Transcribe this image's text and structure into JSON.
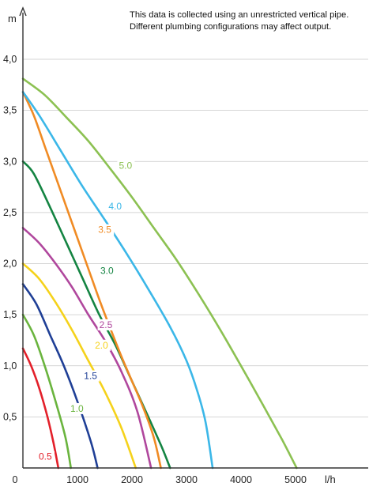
{
  "note": {
    "line1": "This data is collected using an unrestricted vertical pipe.",
    "line2": "Different plumbing configurations may affect output."
  },
  "chart_data": {
    "type": "line",
    "xlabel": "l/h",
    "ylabel": "m",
    "xlim": [
      0,
      5300
    ],
    "ylim": [
      0,
      4.2
    ],
    "x_ticks": [
      {
        "value": 0,
        "label": "0"
      },
      {
        "value": 1000,
        "label": "1000"
      },
      {
        "value": 2000,
        "label": "2000"
      },
      {
        "value": 3000,
        "label": "3000"
      },
      {
        "value": 4000,
        "label": "4000"
      },
      {
        "value": 5000,
        "label": "5000"
      }
    ],
    "y_ticks": [
      {
        "value": 0.5,
        "label": "0,5"
      },
      {
        "value": 1.0,
        "label": "1,0"
      },
      {
        "value": 1.5,
        "label": "1,5"
      },
      {
        "value": 2.0,
        "label": "2,0"
      },
      {
        "value": 2.5,
        "label": "2,5"
      },
      {
        "value": 3.0,
        "label": "3,0"
      },
      {
        "value": 3.5,
        "label": "3,5"
      },
      {
        "value": 4.0,
        "label": "4,0"
      }
    ],
    "grid": "horizontal",
    "series": [
      {
        "name": "0.5",
        "color": "#e3202a",
        "label_at": [
          290,
          0.08
        ],
        "points": [
          [
            0,
            1.17
          ],
          [
            150,
            1.0
          ],
          [
            300,
            0.78
          ],
          [
            450,
            0.5
          ],
          [
            560,
            0.25
          ],
          [
            650,
            0.0
          ]
        ]
      },
      {
        "name": "1.0",
        "color": "#6ab43e",
        "label_at": [
          870,
          0.55
        ],
        "points": [
          [
            0,
            1.5
          ],
          [
            200,
            1.3
          ],
          [
            400,
            1.0
          ],
          [
            600,
            0.65
          ],
          [
            780,
            0.3
          ],
          [
            880,
            0.0
          ]
        ]
      },
      {
        "name": "1.5",
        "color": "#1f3f96",
        "label_at": [
          1120,
          0.87
        ],
        "points": [
          [
            0,
            1.8
          ],
          [
            250,
            1.6
          ],
          [
            500,
            1.3
          ],
          [
            750,
            1.0
          ],
          [
            1000,
            0.65
          ],
          [
            1250,
            0.25
          ],
          [
            1370,
            0.0
          ]
        ]
      },
      {
        "name": "2.0",
        "color": "#f5d21b",
        "label_at": [
          1320,
          1.17
        ],
        "points": [
          [
            0,
            2.0
          ],
          [
            300,
            1.85
          ],
          [
            600,
            1.62
          ],
          [
            900,
            1.35
          ],
          [
            1200,
            1.05
          ],
          [
            1500,
            0.75
          ],
          [
            1800,
            0.4
          ],
          [
            2070,
            0.0
          ]
        ]
      },
      {
        "name": "2.5",
        "color": "#b0479d",
        "label_at": [
          1400,
          1.37
        ],
        "points": [
          [
            0,
            2.35
          ],
          [
            300,
            2.2
          ],
          [
            600,
            2.0
          ],
          [
            900,
            1.77
          ],
          [
            1200,
            1.5
          ],
          [
            1500,
            1.25
          ],
          [
            1800,
            0.95
          ],
          [
            2100,
            0.55
          ],
          [
            2350,
            0.0
          ]
        ]
      },
      {
        "name": "3.0",
        "color": "#148442",
        "label_at": [
          1420,
          1.9
        ],
        "points": [
          [
            0,
            3.0
          ],
          [
            200,
            2.88
          ],
          [
            500,
            2.55
          ],
          [
            800,
            2.2
          ],
          [
            1100,
            1.85
          ],
          [
            1400,
            1.5
          ],
          [
            1700,
            1.2
          ],
          [
            2000,
            0.85
          ],
          [
            2300,
            0.5
          ],
          [
            2550,
            0.2
          ],
          [
            2700,
            0.0
          ]
        ]
      },
      {
        "name": "3.5",
        "color": "#f08b24",
        "label_at": [
          1380,
          2.3
        ],
        "points": [
          [
            0,
            3.68
          ],
          [
            200,
            3.45
          ],
          [
            400,
            3.15
          ],
          [
            600,
            2.85
          ],
          [
            800,
            2.55
          ],
          [
            1000,
            2.25
          ],
          [
            1200,
            1.95
          ],
          [
            1400,
            1.65
          ],
          [
            1600,
            1.37
          ],
          [
            1800,
            1.1
          ],
          [
            2000,
            0.85
          ],
          [
            2200,
            0.6
          ],
          [
            2400,
            0.3
          ],
          [
            2530,
            0.0
          ]
        ]
      },
      {
        "name": "4.0",
        "color": "#3bb7e8",
        "label_at": [
          1570,
          2.53
        ],
        "points": [
          [
            0,
            3.68
          ],
          [
            300,
            3.45
          ],
          [
            700,
            3.1
          ],
          [
            1100,
            2.75
          ],
          [
            1500,
            2.43
          ],
          [
            1900,
            2.1
          ],
          [
            2300,
            1.75
          ],
          [
            2700,
            1.38
          ],
          [
            3000,
            1.05
          ],
          [
            3200,
            0.75
          ],
          [
            3350,
            0.45
          ],
          [
            3480,
            0.0
          ]
        ]
      },
      {
        "name": "5.0",
        "color": "#8cc152",
        "label_at": [
          1760,
          2.93
        ],
        "points": [
          [
            0,
            3.81
          ],
          [
            400,
            3.65
          ],
          [
            800,
            3.43
          ],
          [
            1200,
            3.2
          ],
          [
            1600,
            2.93
          ],
          [
            2000,
            2.65
          ],
          [
            2400,
            2.35
          ],
          [
            2800,
            2.05
          ],
          [
            3200,
            1.72
          ],
          [
            3600,
            1.37
          ],
          [
            4000,
            1.0
          ],
          [
            4400,
            0.62
          ],
          [
            4750,
            0.28
          ],
          [
            5020,
            0.0
          ]
        ]
      }
    ]
  }
}
